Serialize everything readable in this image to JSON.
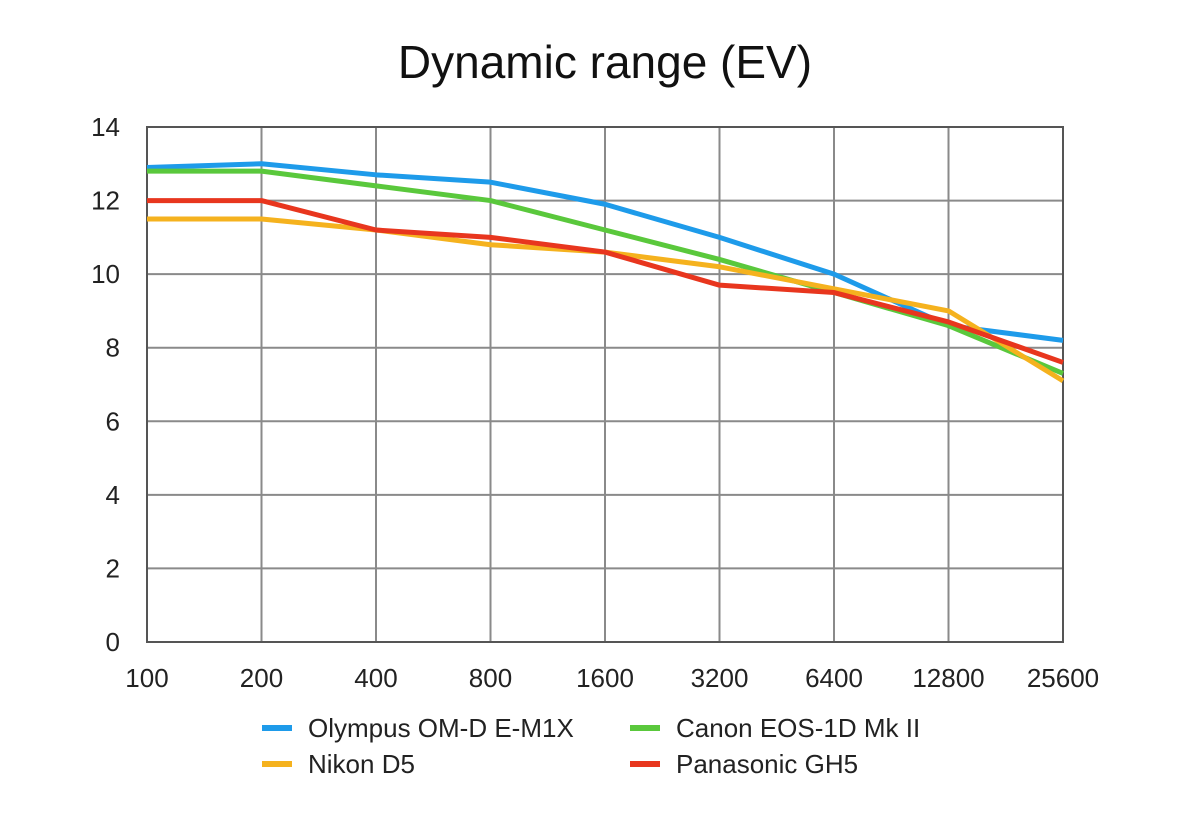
{
  "chart_data": {
    "type": "line",
    "title": "Dynamic range (EV)",
    "xlabel": "",
    "ylabel": "",
    "ylim": [
      0,
      14
    ],
    "yticks": [
      "0",
      "2",
      "4",
      "6",
      "8",
      "10",
      "12",
      "14"
    ],
    "categories": [
      "100",
      "200",
      "400",
      "800",
      "1600",
      "3200",
      "6400",
      "12800",
      "25600"
    ],
    "grid": true,
    "legend_position": "bottom",
    "series": [
      {
        "name": "Olympus OM-D E-M1X",
        "color": "#1e9bea",
        "values": [
          12.9,
          13.0,
          12.7,
          12.5,
          11.9,
          11.0,
          10.0,
          8.6,
          8.2
        ]
      },
      {
        "name": "Canon EOS-1D Mk II",
        "color": "#5ac83c",
        "values": [
          12.8,
          12.8,
          12.4,
          12.0,
          11.2,
          10.4,
          9.5,
          8.6,
          7.3
        ]
      },
      {
        "name": "Nikon D5",
        "color": "#f5b21e",
        "values": [
          11.5,
          11.5,
          11.2,
          10.8,
          10.6,
          10.2,
          9.6,
          9.0,
          7.1
        ]
      },
      {
        "name": "Panasonic GH5",
        "color": "#e8361e",
        "values": [
          12.0,
          12.0,
          11.2,
          11.0,
          10.6,
          9.7,
          9.5,
          8.7,
          7.6
        ]
      }
    ],
    "legend_order": [
      0,
      1,
      2,
      3
    ]
  }
}
